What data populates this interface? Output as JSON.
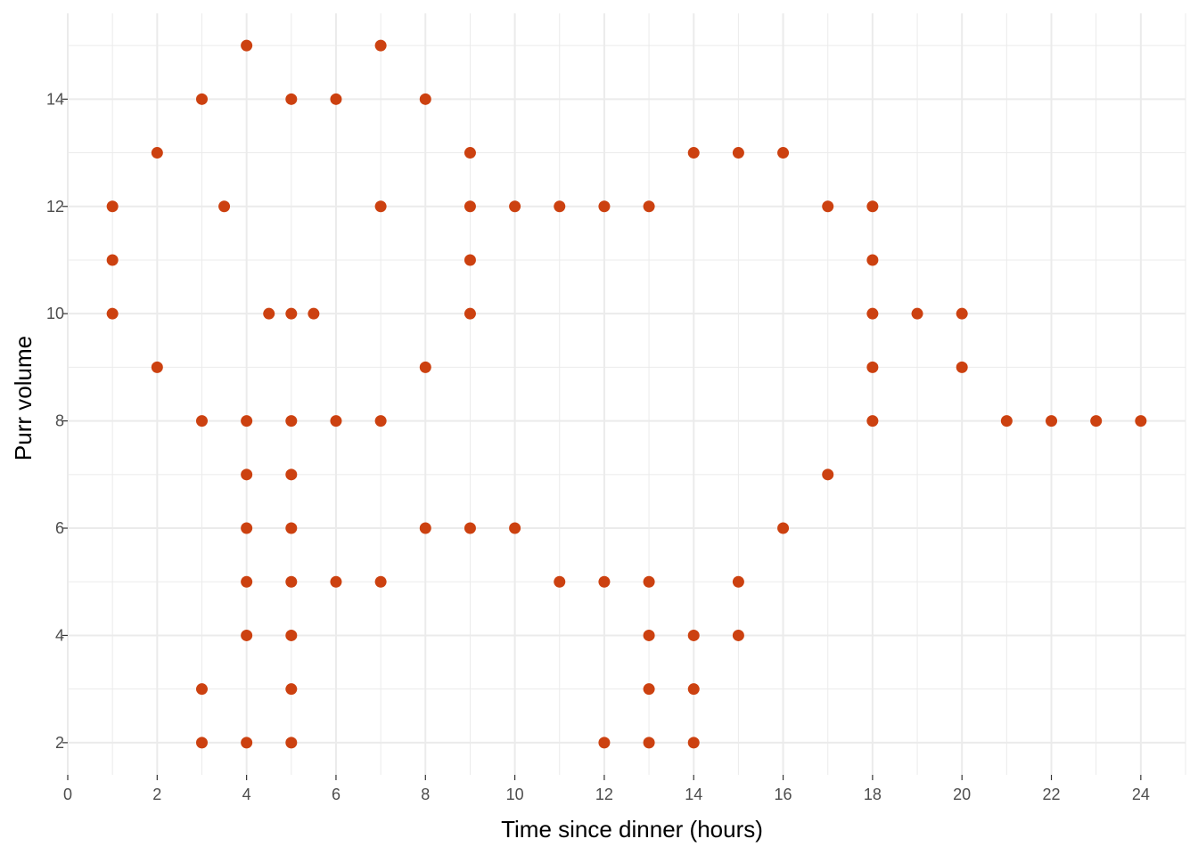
{
  "chart_data": {
    "type": "scatter",
    "title": "",
    "xlabel": "Time since dinner (hours)",
    "ylabel": "Purr volume",
    "xlim": [
      0,
      25
    ],
    "ylim": [
      1.4,
      15.6
    ],
    "x_ticks": [
      0,
      2,
      4,
      6,
      8,
      10,
      12,
      14,
      16,
      18,
      20,
      22,
      24
    ],
    "y_ticks": [
      2,
      4,
      6,
      8,
      10,
      12,
      14
    ],
    "grid": true,
    "legend": "none",
    "point_color": "#cc4110",
    "grid_color": "#ebebeb",
    "points": [
      [
        4,
        15
      ],
      [
        7,
        15
      ],
      [
        3,
        14
      ],
      [
        5,
        14
      ],
      [
        6,
        14
      ],
      [
        8,
        14
      ],
      [
        2,
        13
      ],
      [
        9,
        13
      ],
      [
        14,
        13
      ],
      [
        15,
        13
      ],
      [
        16,
        13
      ],
      [
        1,
        12
      ],
      [
        3.5,
        12
      ],
      [
        7,
        12
      ],
      [
        9,
        12
      ],
      [
        10,
        12
      ],
      [
        11,
        12
      ],
      [
        12,
        12
      ],
      [
        13,
        12
      ],
      [
        17,
        12
      ],
      [
        18,
        12
      ],
      [
        1,
        11
      ],
      [
        9,
        11
      ],
      [
        18,
        11
      ],
      [
        1,
        10
      ],
      [
        4.5,
        10
      ],
      [
        5,
        10
      ],
      [
        5.5,
        10
      ],
      [
        9,
        10
      ],
      [
        18,
        10
      ],
      [
        19,
        10
      ],
      [
        20,
        10
      ],
      [
        2,
        9
      ],
      [
        8,
        9
      ],
      [
        18,
        9
      ],
      [
        20,
        9
      ],
      [
        3,
        8
      ],
      [
        4,
        8
      ],
      [
        5,
        8
      ],
      [
        6,
        8
      ],
      [
        7,
        8
      ],
      [
        18,
        8
      ],
      [
        21,
        8
      ],
      [
        22,
        8
      ],
      [
        23,
        8
      ],
      [
        24,
        8
      ],
      [
        4,
        7
      ],
      [
        5,
        7
      ],
      [
        17,
        7
      ],
      [
        4,
        6
      ],
      [
        5,
        6
      ],
      [
        8,
        6
      ],
      [
        9,
        6
      ],
      [
        10,
        6
      ],
      [
        16,
        6
      ],
      [
        4,
        5
      ],
      [
        5,
        5
      ],
      [
        6,
        5
      ],
      [
        7,
        5
      ],
      [
        11,
        5
      ],
      [
        12,
        5
      ],
      [
        13,
        5
      ],
      [
        15,
        5
      ],
      [
        4,
        4
      ],
      [
        5,
        4
      ],
      [
        13,
        4
      ],
      [
        14,
        4
      ],
      [
        15,
        4
      ],
      [
        3,
        3
      ],
      [
        5,
        3
      ],
      [
        13,
        3
      ],
      [
        14,
        3
      ],
      [
        3,
        2
      ],
      [
        4,
        2
      ],
      [
        5,
        2
      ],
      [
        12,
        2
      ],
      [
        13,
        2
      ],
      [
        14,
        2
      ]
    ]
  }
}
